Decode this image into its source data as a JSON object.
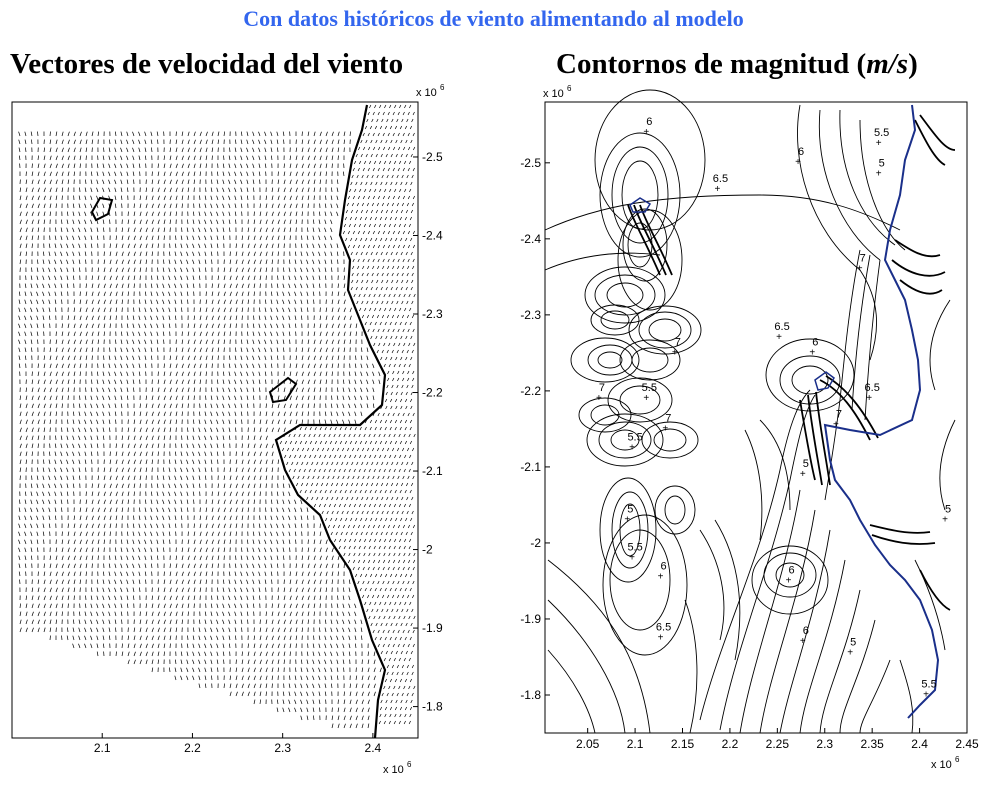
{
  "header": {
    "title": "Con datos históricos de viento alimentando al modelo",
    "title_color": "#3366ee"
  },
  "panels": {
    "left": {
      "title": "Vectores de velocidad   del viento"
    },
    "right": {
      "title_prefix": "Contornos de magnitud  (",
      "title_unit": "m/s",
      "title_suffix": ")"
    }
  },
  "chart_data": [
    {
      "type": "quiver",
      "title": "Vectores de velocidad   del viento",
      "xlabel": "",
      "ylabel": "",
      "x_multiplier": "x 10^6",
      "y_multiplier": "x 10^6",
      "xlim": [
        2.0,
        2.45
      ],
      "ylim": [
        -2.57,
        -1.76
      ],
      "x_ticks": [
        2.1,
        2.2,
        2.3,
        2.4
      ],
      "y_ticks": [
        -2.5,
        -2.4,
        -2.3,
        -2.2,
        -2.1,
        -2.0,
        -1.9,
        -1.8
      ],
      "y_tick_labels": [
        "-2.5",
        "-2.4",
        "-2.3",
        "-2.2",
        "-2.1",
        "-2",
        "-1.9",
        "-1.8"
      ],
      "y_axis_side": "right",
      "grid": false,
      "colors": {
        "arrows": "#000000",
        "coast": "#000000"
      }
    },
    {
      "type": "contour",
      "title": "Contornos de magnitud (m/s)",
      "xlabel": "",
      "ylabel": "",
      "x_multiplier": "x 10^6",
      "y_multiplier": "x 10^6",
      "xlim": [
        2.005,
        2.45
      ],
      "ylim": [
        -2.58,
        -1.75
      ],
      "x_ticks": [
        2.05,
        2.1,
        2.15,
        2.2,
        2.25,
        2.3,
        2.35,
        2.4,
        2.45
      ],
      "x_tick_labels": [
        "2.05",
        "2.1",
        "2.15",
        "2.2",
        "2.25",
        "2.3",
        "2.35",
        "2.4",
        "2.45"
      ],
      "y_ticks": [
        -2.5,
        -2.4,
        -2.3,
        -2.2,
        -2.1,
        -2.0,
        -1.9,
        -1.8
      ],
      "y_tick_labels": [
        "-2.5",
        "-2.4",
        "-2.3",
        "-2.2",
        "-2.1",
        "-2",
        "-1.9",
        "-1.8"
      ],
      "y_axis_side": "left",
      "grid": false,
      "contour_labels": [
        {
          "text": "6",
          "x": 2.115,
          "y": -2.55
        },
        {
          "text": "6.5",
          "x": 2.19,
          "y": -2.475
        },
        {
          "text": "6",
          "x": 2.275,
          "y": -2.51
        },
        {
          "text": "5.5",
          "x": 2.36,
          "y": -2.535
        },
        {
          "text": "5",
          "x": 2.36,
          "y": -2.495
        },
        {
          "text": "7",
          "x": 2.34,
          "y": -2.37
        },
        {
          "text": "6.5",
          "x": 2.255,
          "y": -2.28
        },
        {
          "text": "6",
          "x": 2.29,
          "y": -2.26
        },
        {
          "text": "7",
          "x": 2.145,
          "y": -2.26
        },
        {
          "text": "5.5",
          "x": 2.115,
          "y": -2.2
        },
        {
          "text": "7",
          "x": 2.065,
          "y": -2.2
        },
        {
          "text": "7",
          "x": 2.135,
          "y": -2.16
        },
        {
          "text": "5.5",
          "x": 2.1,
          "y": -2.135
        },
        {
          "text": "6.5",
          "x": 2.35,
          "y": -2.2
        },
        {
          "text": "7",
          "x": 2.315,
          "y": -2.165
        },
        {
          "text": "5",
          "x": 2.28,
          "y": -2.1
        },
        {
          "text": "5",
          "x": 2.095,
          "y": -2.04
        },
        {
          "text": "5.5",
          "x": 2.1,
          "y": -1.99
        },
        {
          "text": "6",
          "x": 2.13,
          "y": -1.965
        },
        {
          "text": "6.5",
          "x": 2.13,
          "y": -1.885
        },
        {
          "text": "6",
          "x": 2.265,
          "y": -1.96
        },
        {
          "text": "5",
          "x": 2.43,
          "y": -2.04
        },
        {
          "text": "5",
          "x": 2.33,
          "y": -1.865
        },
        {
          "text": "6",
          "x": 2.28,
          "y": -1.88
        },
        {
          "text": "5.5",
          "x": 2.41,
          "y": -1.81
        }
      ],
      "colors": {
        "contours": "#000000",
        "coast": "#1a2f8a"
      }
    }
  ]
}
